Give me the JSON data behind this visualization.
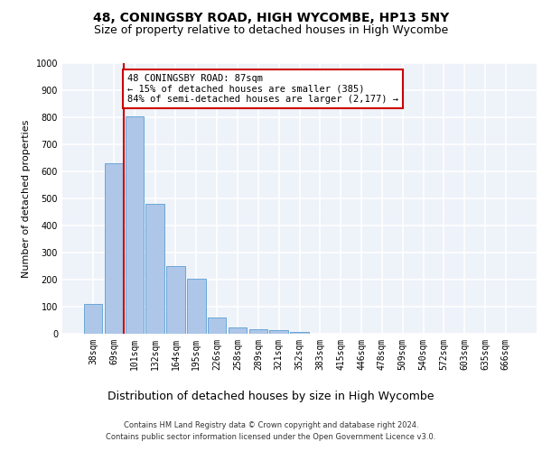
{
  "title_line1": "48, CONINGSBY ROAD, HIGH WYCOMBE, HP13 5NY",
  "title_line2": "Size of property relative to detached houses in High Wycombe",
  "xlabel": "Distribution of detached houses by size in High Wycombe",
  "ylabel": "Number of detached properties",
  "footer_line1": "Contains HM Land Registry data © Crown copyright and database right 2024.",
  "footer_line2": "Contains public sector information licensed under the Open Government Licence v3.0.",
  "categories": [
    "38sqm",
    "69sqm",
    "101sqm",
    "132sqm",
    "164sqm",
    "195sqm",
    "226sqm",
    "258sqm",
    "289sqm",
    "321sqm",
    "352sqm",
    "383sqm",
    "415sqm",
    "446sqm",
    "478sqm",
    "509sqm",
    "540sqm",
    "572sqm",
    "603sqm",
    "635sqm",
    "666sqm"
  ],
  "values": [
    110,
    630,
    805,
    480,
    250,
    205,
    60,
    25,
    18,
    12,
    8,
    0,
    0,
    0,
    0,
    0,
    0,
    0,
    0,
    0,
    0
  ],
  "bar_color": "#aec6e8",
  "bar_edge_color": "#5a9fd4",
  "red_line_x": 1.5,
  "annotation_title": "48 CONINGSBY ROAD: 87sqm",
  "annotation_line1": "← 15% of detached houses are smaller (385)",
  "annotation_line2": "84% of semi-detached houses are larger (2,177) →",
  "ylim": [
    0,
    1000
  ],
  "yticks": [
    0,
    100,
    200,
    300,
    400,
    500,
    600,
    700,
    800,
    900,
    1000
  ],
  "bg_color": "#eef2f9",
  "grid_color": "#ffffff",
  "annotation_box_facecolor": "#ffffff",
  "annotation_box_edgecolor": "#cc0000",
  "title1_fontsize": 10,
  "title2_fontsize": 9,
  "xlabel_fontsize": 9,
  "ylabel_fontsize": 8,
  "tick_fontsize": 7,
  "footer_fontsize": 6,
  "annotation_fontsize": 7.5
}
